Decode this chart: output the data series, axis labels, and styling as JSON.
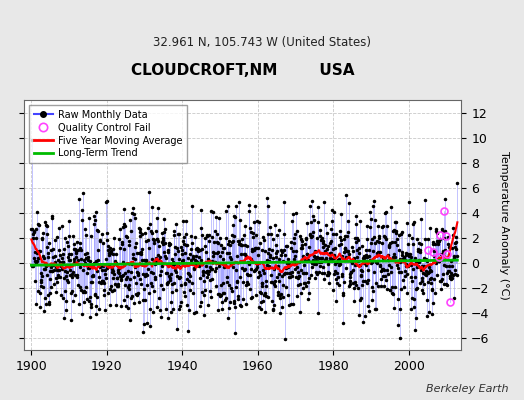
{
  "title": "CLOUDCROFT,NM        USA",
  "subtitle": "32.961 N, 105.743 W (United States)",
  "ylabel": "Temperature Anomaly (°C)",
  "credit": "Berkeley Earth",
  "start_year": 1900,
  "end_year": 2012,
  "ylim": [
    -7,
    13
  ],
  "yticks": [
    -6,
    -4,
    -2,
    0,
    2,
    4,
    6,
    8,
    10,
    12
  ],
  "xlim": [
    1898,
    2014
  ],
  "xticks": [
    1900,
    1920,
    1940,
    1960,
    1980,
    2000
  ],
  "background_color": "#e8e8e8",
  "plot_bg_color": "#ffffff",
  "line_color": "#4444ff",
  "stem_color": "#8888ff",
  "marker_color": "#000000",
  "qc_color": "#ff44ff",
  "moving_avg_color": "#ff0000",
  "trend_color": "#00bb00",
  "noise_std": 1.8,
  "seed": 137
}
